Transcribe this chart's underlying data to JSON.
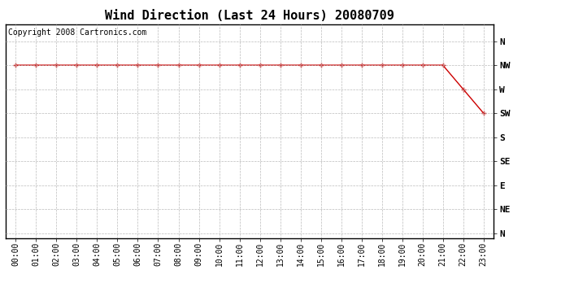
{
  "title": "Wind Direction (Last 24 Hours) 20080709",
  "copyright": "Copyright 2008 Cartronics.com",
  "line_color": "#cc0000",
  "marker": "+",
  "marker_size": 4,
  "marker_color": "#cc0000",
  "background_color": "#ffffff",
  "grid_color": "#bbbbbb",
  "x_labels": [
    "00:00",
    "01:00",
    "02:00",
    "03:00",
    "04:00",
    "05:00",
    "06:00",
    "07:00",
    "08:00",
    "09:00",
    "10:00",
    "11:00",
    "12:00",
    "13:00",
    "14:00",
    "15:00",
    "16:00",
    "17:00",
    "18:00",
    "19:00",
    "20:00",
    "21:00",
    "22:00",
    "23:00"
  ],
  "y_labels": [
    "N",
    "NW",
    "W",
    "SW",
    "S",
    "SE",
    "E",
    "NE",
    "N"
  ],
  "y_values": [
    8,
    7,
    6,
    5,
    4,
    3,
    2,
    1,
    0
  ],
  "data_x": [
    0,
    1,
    2,
    3,
    4,
    5,
    6,
    7,
    8,
    9,
    10,
    11,
    12,
    13,
    14,
    15,
    16,
    17,
    18,
    19,
    20,
    21,
    22,
    23
  ],
  "data_y": [
    7,
    7,
    7,
    7,
    7,
    7,
    7,
    7,
    7,
    7,
    7,
    7,
    7,
    7,
    7,
    7,
    7,
    7,
    7,
    7,
    7,
    7,
    6,
    5
  ],
  "xlim": [
    -0.5,
    23.5
  ],
  "ylim": [
    -0.2,
    8.7
  ],
  "title_fontsize": 11,
  "axis_fontsize": 7,
  "copyright_fontsize": 7,
  "fig_width": 6.9,
  "fig_height": 3.75,
  "dpi": 100
}
